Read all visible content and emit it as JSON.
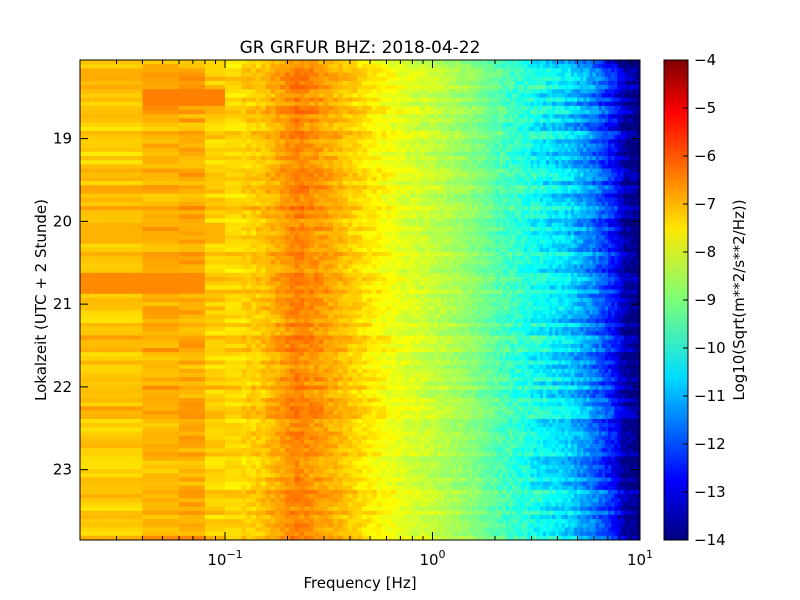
{
  "chart_data": {
    "type": "heatmap",
    "title": "GR GRFUR BHZ: 2018-04-22",
    "xlabel": "Frequency [Hz]",
    "ylabel": "Lokalzeit (UTC + 2 Stunde)",
    "x_scale": "log",
    "xlim": [
      0.02,
      10
    ],
    "x_ticks": [
      {
        "value": 0.1,
        "base": "10",
        "exp": "−1"
      },
      {
        "value": 1,
        "base": "10",
        "exp": "0"
      },
      {
        "value": 10,
        "base": "10",
        "exp": "1"
      }
    ],
    "ylim": [
      18.05,
      23.85
    ],
    "y_inverted": true,
    "y_ticks": [
      "19",
      "20",
      "21",
      "22",
      "23"
    ],
    "y_tick_values": [
      19,
      20,
      21,
      22,
      23
    ],
    "colorbar": {
      "label": "Log10(Sqrt(m**2/s**2/Hz))",
      "range": [
        -14,
        -4
      ],
      "ticks": [
        "−4",
        "−5",
        "−6",
        "−7",
        "−8",
        "−9",
        "−10",
        "−11",
        "−12",
        "−13",
        "−14"
      ],
      "tick_values": [
        -4,
        -5,
        -6,
        -7,
        -8,
        -9,
        -10,
        -11,
        -12,
        -13,
        -14
      ],
      "colormap": "jet"
    },
    "spectrum_profile": {
      "frequency_hz": [
        0.02,
        0.04,
        0.07,
        0.1,
        0.15,
        0.22,
        0.3,
        0.45,
        0.7,
        1.0,
        1.5,
        2.2,
        3.0,
        4.5,
        6.0,
        7.5,
        8.5,
        10
      ],
      "level": [
        -7.3,
        -7.0,
        -6.9,
        -7.4,
        -7.2,
        -6.5,
        -6.8,
        -7.4,
        -8.0,
        -8.3,
        -8.8,
        -9.5,
        -10.0,
        -10.6,
        -11.5,
        -12.5,
        -13.6,
        -14.0
      ]
    },
    "events": [
      {
        "time": 18.5,
        "frequency_range": [
          0.04,
          0.1
        ],
        "level": -6.5
      },
      {
        "time": 20.75,
        "frequency_range": [
          0.02,
          0.08
        ],
        "level": -6.6
      },
      {
        "time": 20.15,
        "frequency_range": [
          0.02,
          0.1
        ],
        "level": -7.0
      }
    ],
    "grid": false
  }
}
